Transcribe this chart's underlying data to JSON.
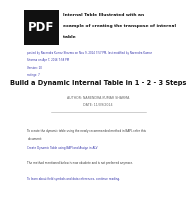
{
  "bg_color": "#ffffff",
  "pdf_badge_bg": "#111111",
  "pdf_badge_text": "PDF",
  "header_title_lines": [
    "Internal Table Illustrated with an",
    "example of creating the transpose of internal",
    "table"
  ],
  "author_line1": "posted by Narendra Kumar Sharma on Nov 9, 2014 7:57 PM, last modified by Narendra Kumar",
  "author_line2": "Sharma on Apr 7, 2016 7:58 PM",
  "version_line": "Version: 10",
  "ratings_line": "ratings: 7",
  "main_title": "Build a Dynamic Internal Table in 1 - 2 - 3 Steps",
  "author_label": "AUTHOR: NARENDRA KUMAR SHARMA",
  "date_label": "DATE: 11/09/2014",
  "body_line1": "To create the dynamic table using the newly recommended method in BAPI, refer this",
  "body_line2": "document:",
  "link_line": "Create Dynamic Table using BAPI and Assign in ALV",
  "obsolete_line": "The method mentioned below is now obsolete and is not preferred anymore.",
  "learn_line": "To learn about field symbols and data references, continue reading.",
  "link_color": "#3333aa",
  "meta_color": "#3333aa",
  "title_color": "#111111",
  "body_color": "#333333",
  "divider_color": "#aaaaaa",
  "author_color": "#666666"
}
